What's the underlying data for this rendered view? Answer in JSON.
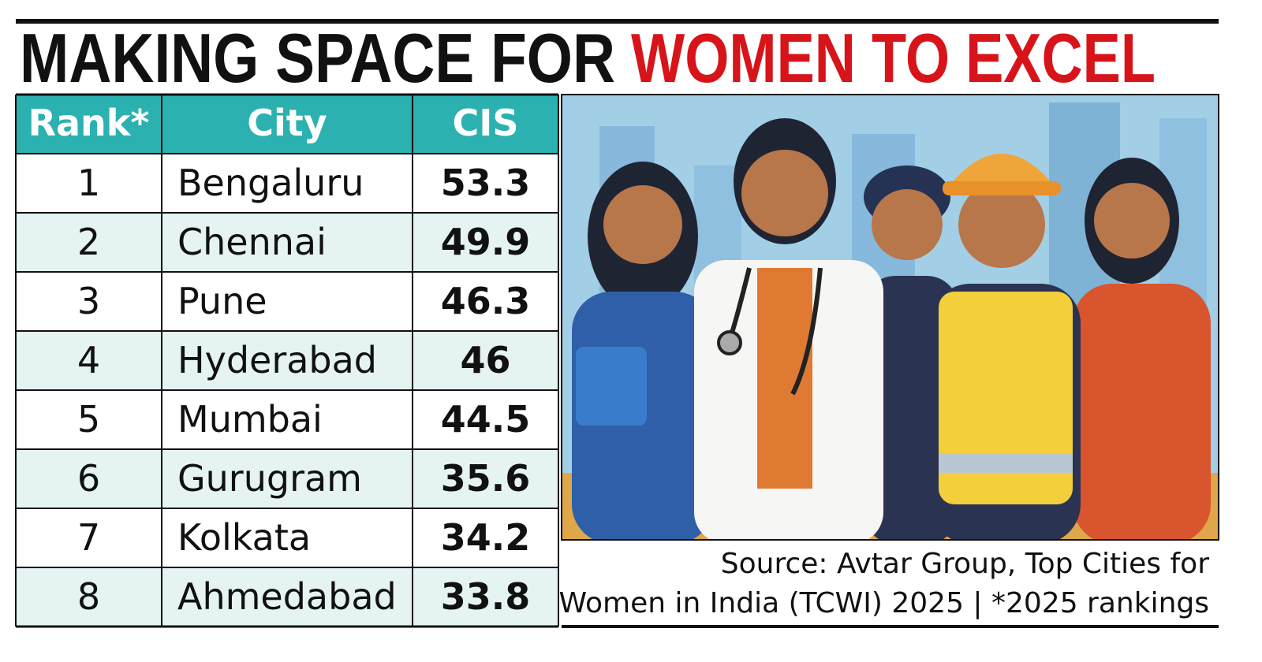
{
  "header": {
    "title_black": "MAKING SPACE FOR",
    "title_red": "WOMEN TO EXCEL"
  },
  "table": {
    "columns": [
      "Rank*",
      "City",
      "CIS"
    ],
    "rows": [
      [
        1,
        "Bengaluru",
        53.3
      ],
      [
        2,
        "Chennai",
        49.9
      ],
      [
        3,
        "Pune",
        46.3
      ],
      [
        4,
        "Hyderabad",
        46
      ],
      [
        5,
        "Mumbai",
        44.5
      ],
      [
        6,
        "Gurugram",
        35.6
      ],
      [
        7,
        "Kolkata",
        34.2
      ],
      [
        8,
        "Ahmedabad",
        33.8
      ]
    ]
  },
  "source": {
    "lines": [
      "Source: Avtar Group, Top Cities for",
      "Women in India (TCWI) 2025  |  *2025 rankings"
    ]
  }
}
